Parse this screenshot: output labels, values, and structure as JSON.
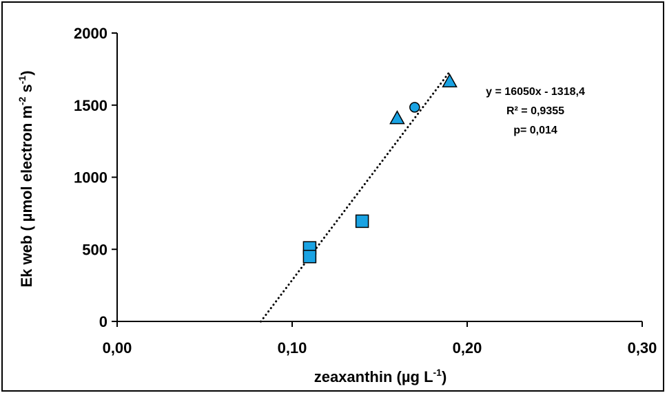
{
  "chart_data": {
    "type": "scatter",
    "xlabel": {
      "main": "zeaxanthin (µg L",
      "sup": "-1",
      "end": ")"
    },
    "ylabel": {
      "main": "Ek web ( µmol electron m",
      "sup1": "-2",
      "mid": " s",
      "sup2": "-1",
      "end": ")"
    },
    "xlim": [
      0,
      0.3
    ],
    "ylim": [
      0,
      2000
    ],
    "xticks": [
      {
        "value": 0.0,
        "label": "0,00"
      },
      {
        "value": 0.1,
        "label": "0,10"
      },
      {
        "value": 0.2,
        "label": "0,20"
      },
      {
        "value": 0.3,
        "label": "0,30"
      }
    ],
    "yticks": [
      {
        "value": 0,
        "label": "0"
      },
      {
        "value": 500,
        "label": "500"
      },
      {
        "value": 1000,
        "label": "1000"
      },
      {
        "value": 1500,
        "label": "1500"
      },
      {
        "value": 2000,
        "label": "2000"
      }
    ],
    "points": [
      {
        "x": 0.11,
        "y": 510,
        "marker": "square"
      },
      {
        "x": 0.11,
        "y": 450,
        "marker": "square"
      },
      {
        "x": 0.14,
        "y": 695,
        "marker": "square"
      },
      {
        "x": 0.16,
        "y": 1410,
        "marker": "triangle"
      },
      {
        "x": 0.17,
        "y": 1485,
        "marker": "circle"
      },
      {
        "x": 0.19,
        "y": 1665,
        "marker": "triangle"
      }
    ],
    "trendline": {
      "slope": 16050,
      "intercept": -1318.4,
      "x_range": [
        0.0821,
        0.1898
      ],
      "style": "dotted"
    },
    "annotations": {
      "equation": "y = 16050x - 1318,4",
      "r2": "R² = 0,9355",
      "p": "p= 0,014"
    },
    "grid": false,
    "legend": "none",
    "marker_color": "#1aa3e3"
  }
}
